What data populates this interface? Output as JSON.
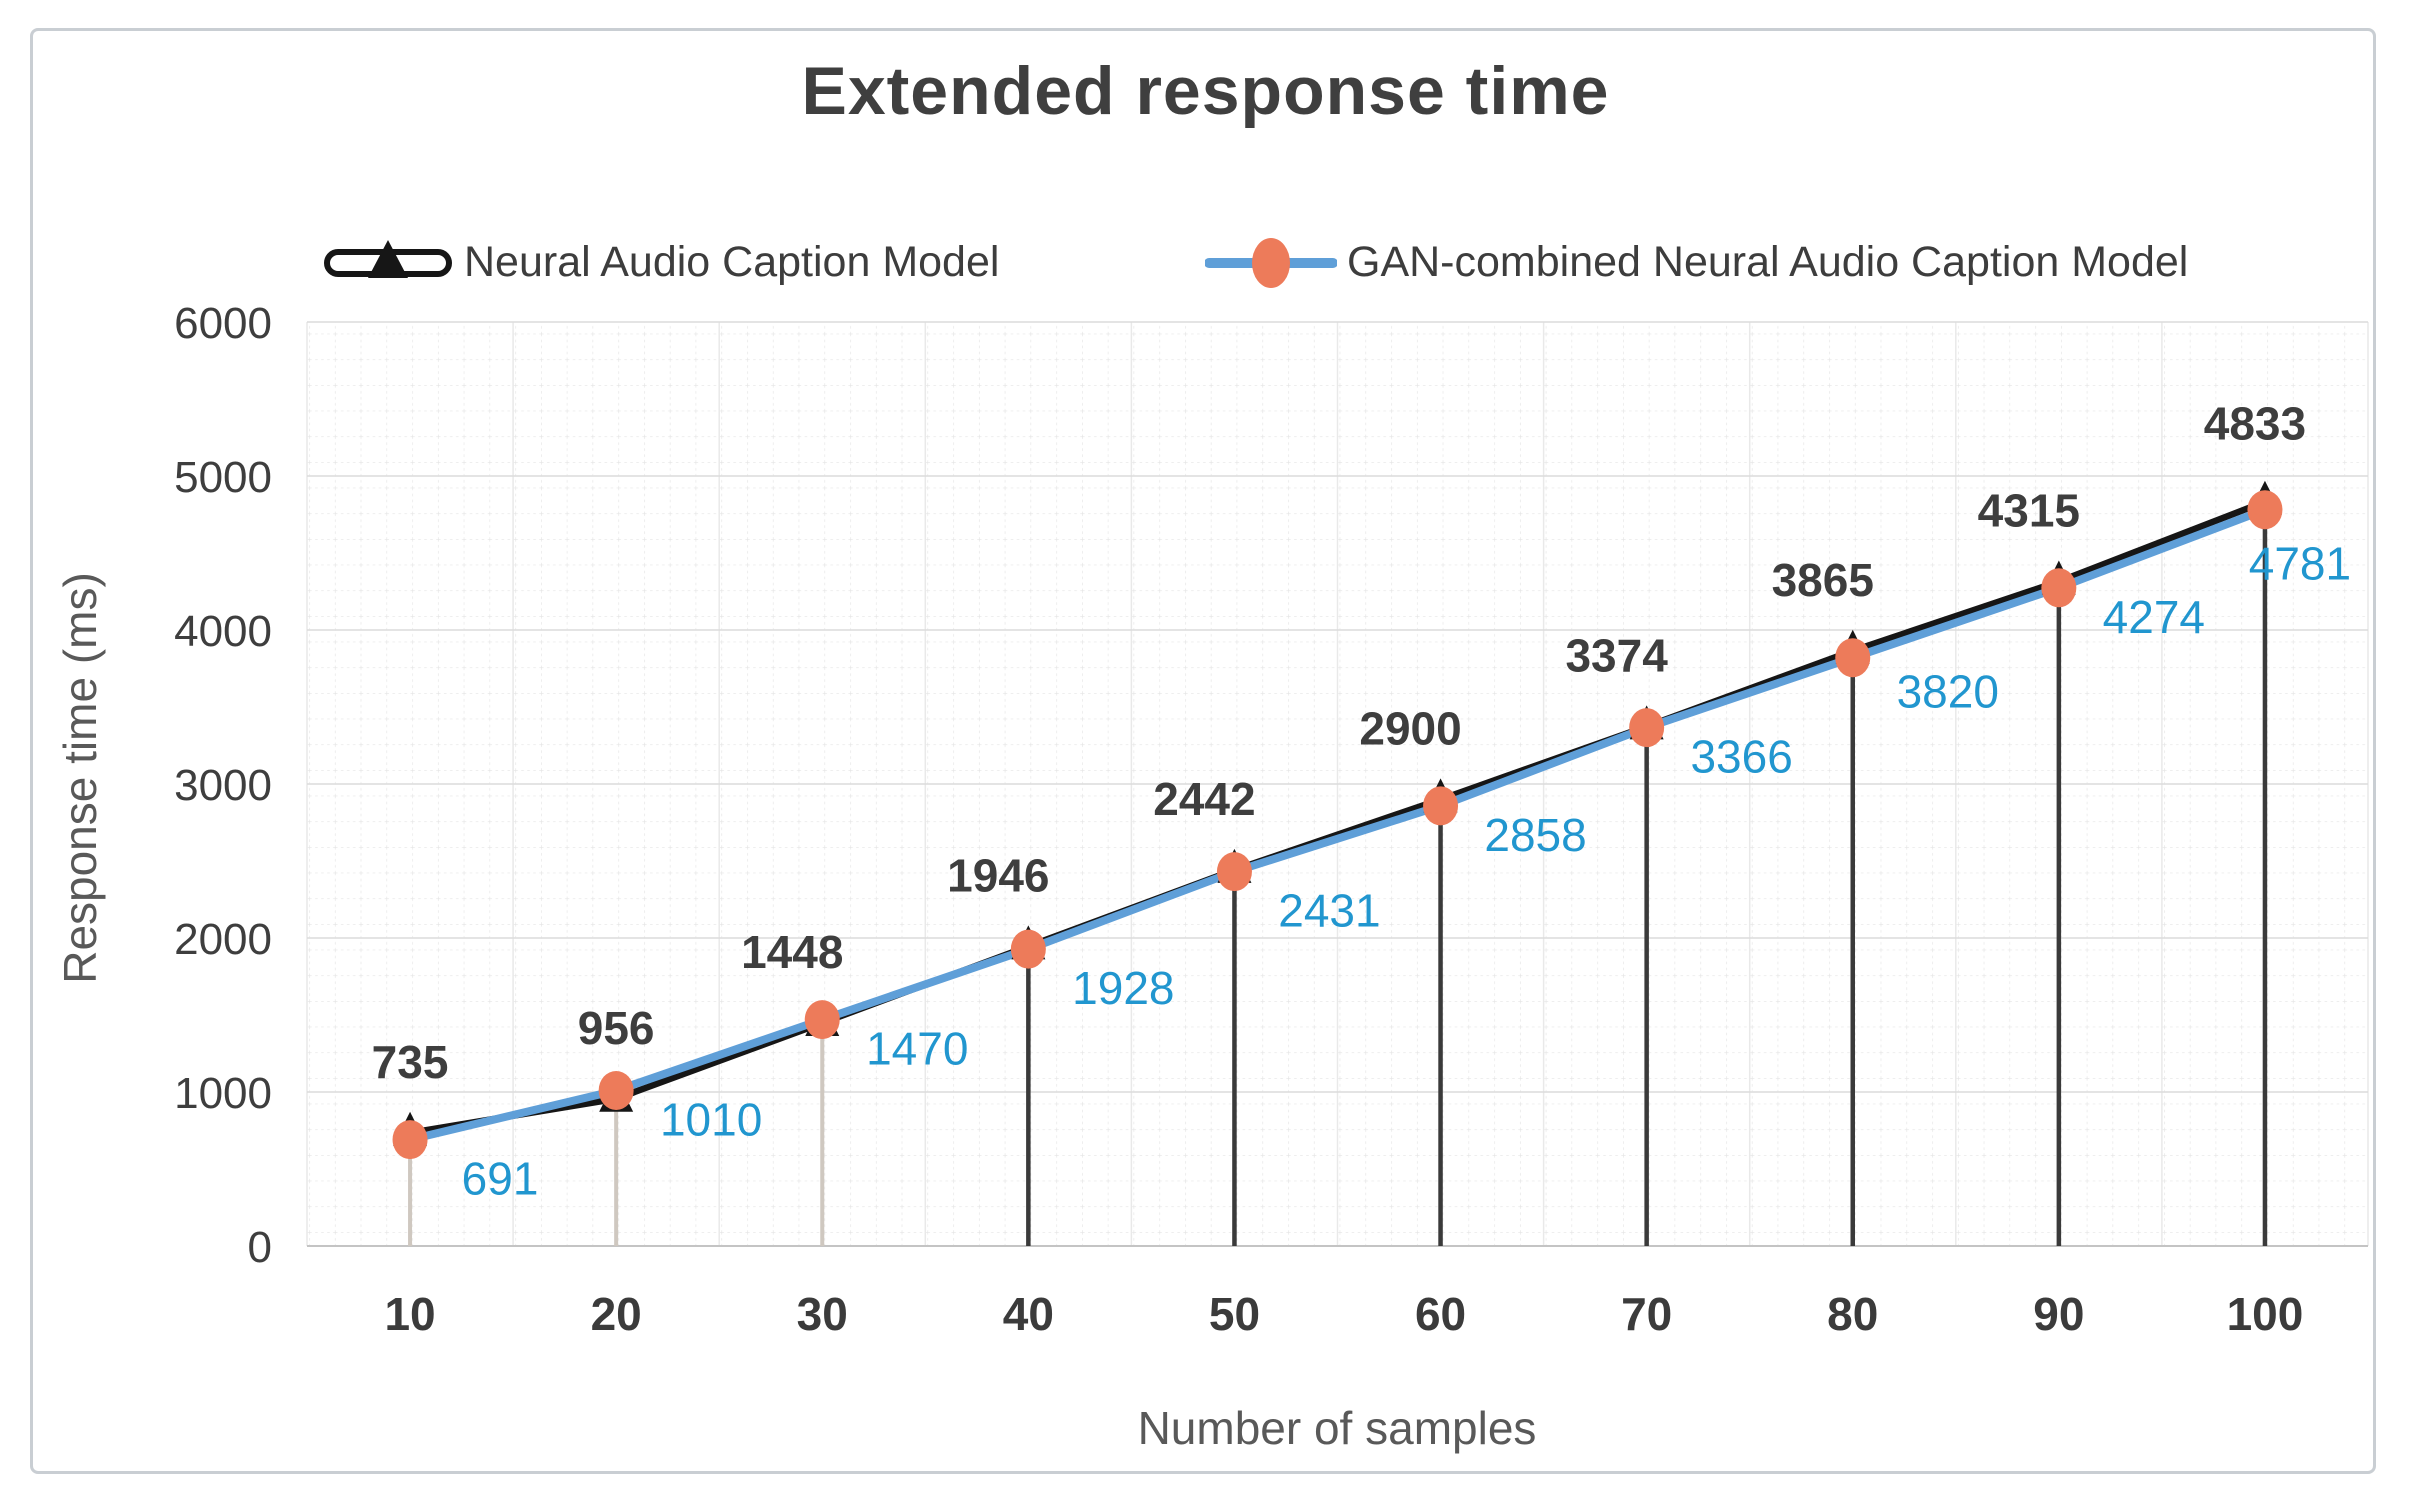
{
  "chart_data": {
    "type": "line",
    "title": "Extended response time",
    "xlabel": "Number of samples",
    "ylabel": "Response time (ms)",
    "categories": [
      10,
      20,
      30,
      40,
      50,
      60,
      70,
      80,
      90,
      100
    ],
    "series": [
      {
        "name": "Neural Audio Caption Model",
        "values": [
          735,
          956,
          1448,
          1946,
          2442,
          2900,
          3374,
          3865,
          4315,
          4833
        ],
        "line_color": "#161616",
        "marker": "triangle",
        "marker_color": "#161616",
        "label_color": "#3e3e3e"
      },
      {
        "name": "GAN-combined Neural Audio Caption Model",
        "values": [
          691,
          1010,
          1470,
          1928,
          2431,
          2858,
          3366,
          3820,
          4274,
          4781
        ],
        "line_color": "#5f9fd8",
        "marker": "circle",
        "marker_color": "#ed7b5a",
        "label_color": "#2196cf"
      }
    ],
    "ylim": [
      0,
      6000
    ],
    "yticks": [
      0,
      1000,
      2000,
      3000,
      4000,
      5000,
      6000
    ],
    "legend_position": "top",
    "grid": "fine dotted minor grid",
    "colors": {
      "grid_minor": "#e4e4e4",
      "grid_major_h": "#dcdcdc",
      "grid_major_v": "#e9e9e9",
      "axis_line": "#c4c4c4",
      "dropline_light": "#cfc8c0",
      "dropline_dark": "#3a3a3a",
      "tick_text": "#3e3e3e",
      "title_text": "#3f3f3f",
      "axis_title_text": "#595959"
    }
  }
}
